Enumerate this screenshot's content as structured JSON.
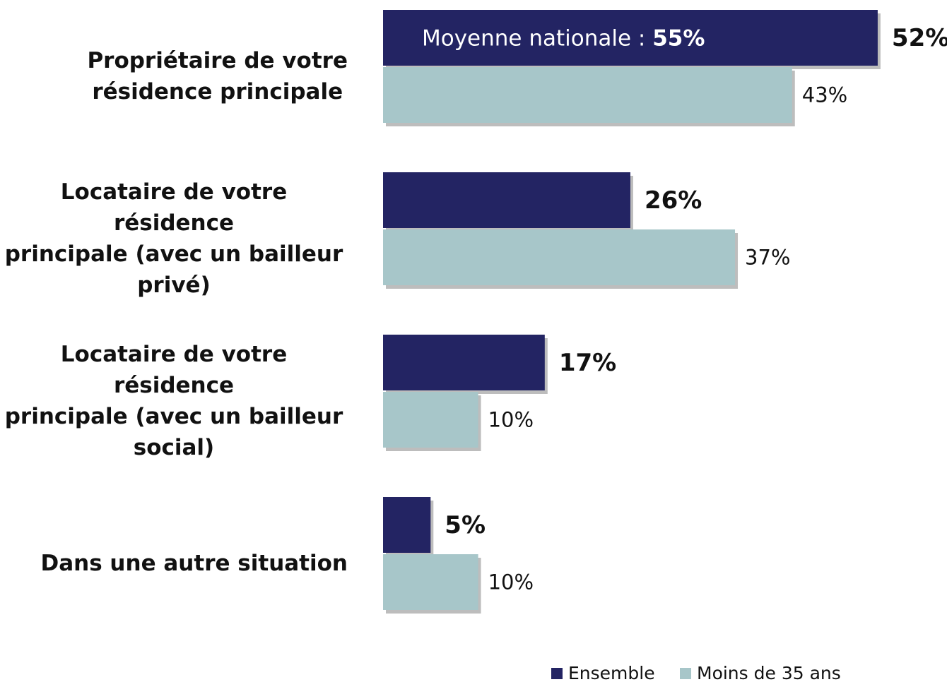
{
  "chart_data": {
    "type": "bar",
    "orientation": "horizontal",
    "categories": [
      "Propriétaire de votre\nrésidence principale",
      "Locataire de votre résidence\nprincipale (avec un bailleur\nprivé)",
      "Locataire de votre résidence\nprincipale (avec un bailleur\nsocial)",
      "Dans une autre situation"
    ],
    "series": [
      {
        "name": "Ensemble",
        "color": "#232463",
        "values": [
          52,
          26,
          17,
          5
        ],
        "value_labels": [
          "52%",
          "26%",
          "17%",
          "5%"
        ]
      },
      {
        "name": "Moins de 35 ans",
        "color": "#a7c6c9",
        "values": [
          43,
          37,
          10,
          10
        ],
        "value_labels": [
          "43%",
          "37%",
          "10%",
          "10%"
        ]
      }
    ],
    "annotation": {
      "text": "Moyenne nationale :",
      "emphasis": "55%"
    },
    "legend": "bottom-right"
  }
}
